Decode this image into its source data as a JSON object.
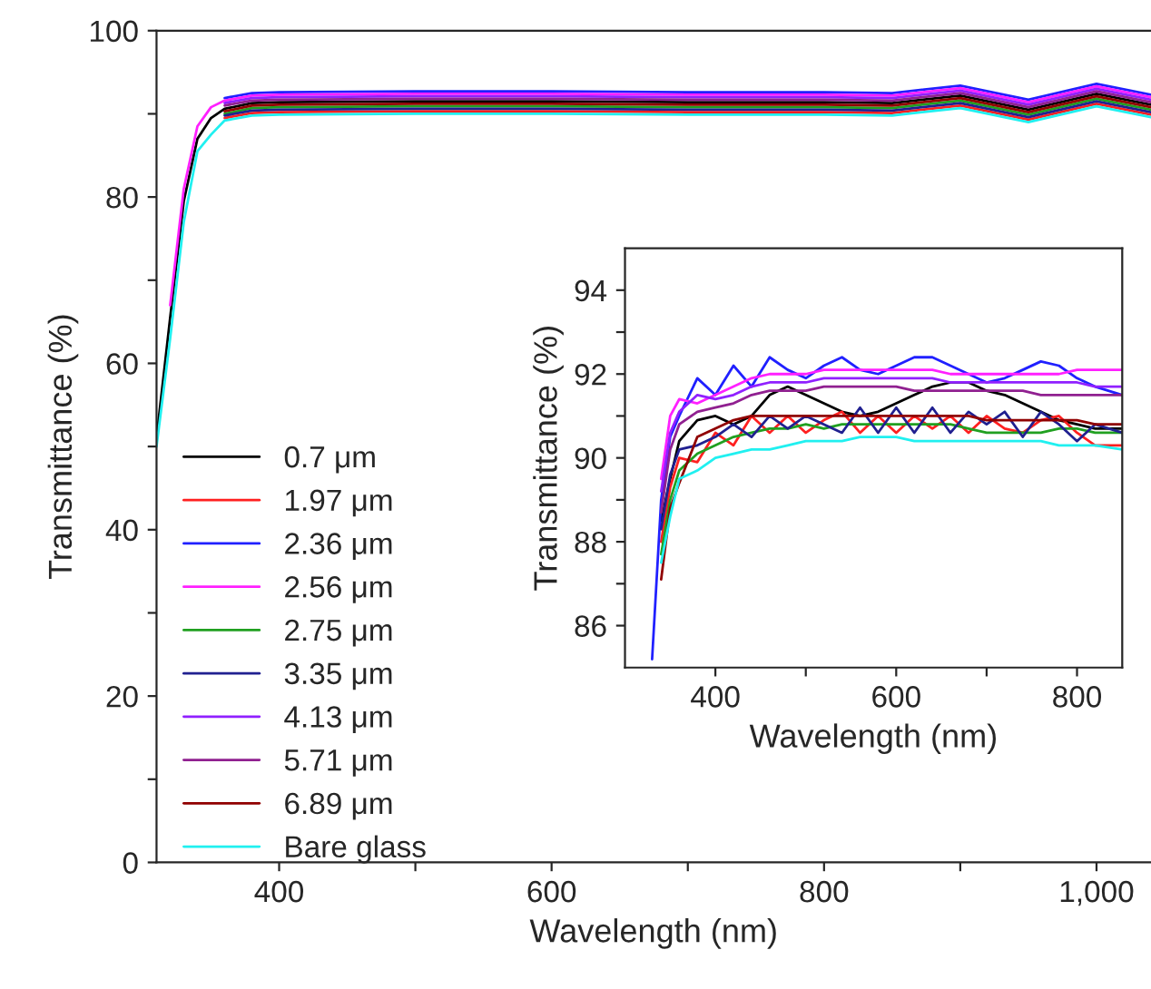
{
  "chart_data": [
    {
      "type": "line",
      "xlabel": "Wavelength (nm)",
      "ylabel": "Transmittance (%)",
      "x": [
        310,
        320,
        330,
        340,
        350,
        360,
        380,
        400,
        500,
        600,
        700,
        800,
        850,
        900,
        950,
        1000,
        1040
      ],
      "xlim": [
        310,
        1040
      ],
      "xticks": [
        {
          "value": 400,
          "label": "400"
        },
        {
          "value": 500,
          "label": null
        },
        {
          "value": 600,
          "label": "600"
        },
        {
          "value": 700,
          "label": null
        },
        {
          "value": 800,
          "label": "800"
        },
        {
          "value": 900,
          "label": null
        },
        {
          "value": 1000,
          "label": "1,000"
        }
      ],
      "ylim": [
        0,
        100
      ],
      "yticks": [
        0,
        {
          "value": 10,
          "label": null
        },
        20,
        {
          "value": 30,
          "label": null
        },
        40,
        {
          "value": 50,
          "label": null
        },
        60,
        {
          "value": 70,
          "label": null
        },
        80,
        {
          "value": 90,
          "label": null
        },
        100
      ],
      "legend": "left",
      "grid": false,
      "line_style": "solid",
      "marker": "none",
      "series": [
        {
          "name": "0.7 μm",
          "color": "#000000",
          "values": [
            51,
            65.5,
            79.5,
            87,
            89.5,
            90.6,
            91.3,
            91.4,
            91.5,
            91.5,
            91.4,
            91.4,
            91.3,
            92.2,
            90.5,
            92.4,
            91.1
          ]
        },
        {
          "name": "1.97 μm",
          "color": "#ff2020",
          "values": [
            null,
            null,
            null,
            null,
            null,
            89.5,
            90.1,
            90.2,
            90.3,
            90.3,
            90.2,
            90.2,
            90.1,
            91.0,
            89.3,
            91.2,
            89.9
          ]
        },
        {
          "name": "2.36 μm",
          "color": "#2020ff",
          "values": [
            null,
            null,
            null,
            null,
            null,
            91.9,
            92.5,
            92.6,
            92.7,
            92.7,
            92.6,
            92.6,
            92.5,
            93.4,
            91.7,
            93.6,
            92.3
          ]
        },
        {
          "name": "2.56 μm",
          "color": "#ff20ff",
          "values": [
            null,
            67,
            81,
            88.5,
            90.8,
            91.6,
            92.2,
            92.3,
            92.4,
            92.4,
            92.3,
            92.3,
            92.2,
            93.1,
            91.4,
            93.3,
            92.0
          ]
        },
        {
          "name": "2.75 μm",
          "color": "#20a020",
          "values": [
            null,
            null,
            null,
            null,
            null,
            90.0,
            90.7,
            90.8,
            90.9,
            90.9,
            90.8,
            90.8,
            90.7,
            91.6,
            89.9,
            91.8,
            90.5
          ]
        },
        {
          "name": "3.35 μm",
          "color": "#202090",
          "values": [
            null,
            null,
            null,
            null,
            null,
            89.8,
            90.4,
            90.5,
            90.6,
            90.6,
            90.5,
            90.5,
            90.4,
            91.3,
            89.6,
            91.5,
            90.2
          ]
        },
        {
          "name": "4.13 μm",
          "color": "#9020ff",
          "values": [
            null,
            null,
            null,
            null,
            null,
            91.3,
            91.9,
            92.0,
            92.1,
            92.1,
            92.0,
            92.0,
            91.9,
            92.8,
            91.1,
            93.0,
            91.7
          ]
        },
        {
          "name": "5.71 μm",
          "color": "#902090",
          "values": [
            null,
            null,
            null,
            null,
            null,
            91.0,
            91.6,
            91.7,
            91.8,
            91.8,
            91.7,
            91.7,
            91.6,
            92.5,
            90.8,
            92.7,
            91.4
          ]
        },
        {
          "name": "6.89 μm",
          "color": "#900000",
          "values": [
            null,
            null,
            null,
            null,
            null,
            90.3,
            91.0,
            91.1,
            91.2,
            91.2,
            91.1,
            91.1,
            91.0,
            91.9,
            90.2,
            92.1,
            90.8
          ]
        },
        {
          "name": "Bare glass",
          "color": "#20f0f0",
          "values": [
            50,
            63,
            77,
            85.5,
            87.5,
            89.2,
            89.8,
            89.9,
            90.0,
            90.0,
            89.9,
            89.9,
            89.8,
            90.7,
            89.0,
            90.9,
            89.6
          ]
        }
      ]
    },
    {
      "type": "line",
      "xlabel": "Wavelength (nm)",
      "ylabel": "Transmittance (%)",
      "x": [
        330,
        340,
        350,
        360,
        380,
        400,
        420,
        440,
        460,
        480,
        500,
        520,
        540,
        560,
        580,
        600,
        620,
        640,
        660,
        680,
        700,
        720,
        740,
        760,
        780,
        800,
        820,
        850
      ],
      "xlim": [
        300,
        850
      ],
      "xticks": [
        400,
        {
          "value": 500,
          "label": null
        },
        600,
        {
          "value": 700,
          "label": null
        },
        800
      ],
      "ylim": [
        85,
        95
      ],
      "yticks": [
        86,
        {
          "value": 87,
          "label": null
        },
        88,
        {
          "value": 89,
          "label": null
        },
        90,
        {
          "value": 91,
          "label": null
        },
        92,
        {
          "value": 93,
          "label": null
        },
        94
      ],
      "legend": false,
      "grid": false,
      "line_style": "solid",
      "marker": "none",
      "series": [
        {
          "color": "#000000",
          "values": [
            null,
            88.5,
            89.5,
            90.4,
            90.9,
            91.0,
            90.8,
            91.0,
            91.5,
            91.7,
            91.5,
            91.3,
            91.1,
            91.0,
            91.1,
            91.3,
            91.5,
            91.7,
            91.8,
            91.8,
            91.6,
            91.5,
            91.3,
            91.1,
            90.9,
            90.8,
            90.7,
            90.7
          ]
        },
        {
          "color": "#ff2020",
          "values": [
            null,
            88.0,
            89.3,
            90.0,
            89.9,
            90.6,
            90.3,
            91.0,
            90.6,
            91.0,
            90.6,
            90.9,
            91.1,
            90.6,
            91.0,
            90.6,
            91.0,
            90.7,
            91.0,
            90.6,
            91.0,
            90.7,
            90.6,
            90.9,
            91.0,
            90.6,
            90.3,
            90.3
          ]
        },
        {
          "color": "#2020ff",
          "values": [
            85.2,
            89.0,
            90.5,
            91.0,
            91.9,
            91.5,
            92.2,
            91.7,
            92.4,
            92.1,
            91.9,
            92.2,
            92.4,
            92.1,
            92.0,
            92.2,
            92.4,
            92.4,
            92.2,
            92.0,
            91.8,
            91.9,
            92.1,
            92.3,
            92.2,
            91.9,
            91.7,
            91.5
          ]
        },
        {
          "color": "#ff20ff",
          "values": [
            null,
            89.5,
            91.0,
            91.4,
            91.3,
            91.5,
            91.7,
            91.9,
            92.0,
            92.0,
            92.0,
            92.1,
            92.1,
            92.1,
            92.1,
            92.1,
            92.1,
            92.1,
            92.0,
            92.0,
            92.0,
            92.0,
            92.0,
            92.0,
            92.0,
            92.1,
            92.1,
            92.1
          ]
        },
        {
          "color": "#20a020",
          "values": [
            null,
            87.7,
            89.0,
            89.7,
            90.1,
            90.3,
            90.5,
            90.6,
            90.7,
            90.7,
            90.8,
            90.7,
            90.8,
            90.8,
            90.8,
            90.8,
            90.8,
            90.8,
            90.8,
            90.7,
            90.6,
            90.6,
            90.6,
            90.6,
            90.7,
            90.7,
            90.6,
            90.6
          ]
        },
        {
          "color": "#202090",
          "values": [
            null,
            88.3,
            89.6,
            90.2,
            90.3,
            90.5,
            90.8,
            90.5,
            91.0,
            90.7,
            91.0,
            90.8,
            90.6,
            91.2,
            90.6,
            91.2,
            90.6,
            91.2,
            90.6,
            91.1,
            90.8,
            91.1,
            90.5,
            91.1,
            90.8,
            90.4,
            90.8,
            90.6
          ]
        },
        {
          "color": "#9020ff",
          "values": [
            null,
            89.2,
            90.6,
            91.1,
            91.5,
            91.4,
            91.5,
            91.7,
            91.8,
            91.8,
            91.8,
            91.9,
            91.9,
            91.9,
            91.9,
            91.9,
            91.9,
            91.9,
            91.8,
            91.8,
            91.8,
            91.8,
            91.8,
            91.8,
            91.8,
            91.8,
            91.7,
            91.7
          ]
        },
        {
          "color": "#902090",
          "values": [
            null,
            88.7,
            90.2,
            90.8,
            91.1,
            91.2,
            91.3,
            91.5,
            91.6,
            91.6,
            91.6,
            91.7,
            91.7,
            91.7,
            91.7,
            91.7,
            91.6,
            91.6,
            91.6,
            91.6,
            91.6,
            91.6,
            91.6,
            91.5,
            91.5,
            91.5,
            91.5,
            91.5
          ]
        },
        {
          "color": "#900000",
          "values": [
            null,
            87.1,
            88.8,
            89.4,
            90.5,
            90.7,
            90.9,
            91.0,
            91.0,
            91.0,
            91.0,
            91.0,
            91.0,
            91.0,
            91.0,
            91.0,
            91.0,
            91.0,
            91.0,
            91.0,
            90.9,
            90.9,
            90.9,
            90.9,
            90.9,
            90.9,
            90.8,
            90.8
          ]
        },
        {
          "color": "#20f0f0",
          "values": [
            null,
            87.5,
            88.6,
            89.5,
            89.7,
            90.0,
            90.1,
            90.2,
            90.2,
            90.3,
            90.4,
            90.4,
            90.4,
            90.5,
            90.5,
            90.5,
            90.4,
            90.4,
            90.4,
            90.4,
            90.4,
            90.4,
            90.4,
            90.4,
            90.3,
            90.3,
            90.3,
            90.2
          ]
        }
      ]
    }
  ]
}
